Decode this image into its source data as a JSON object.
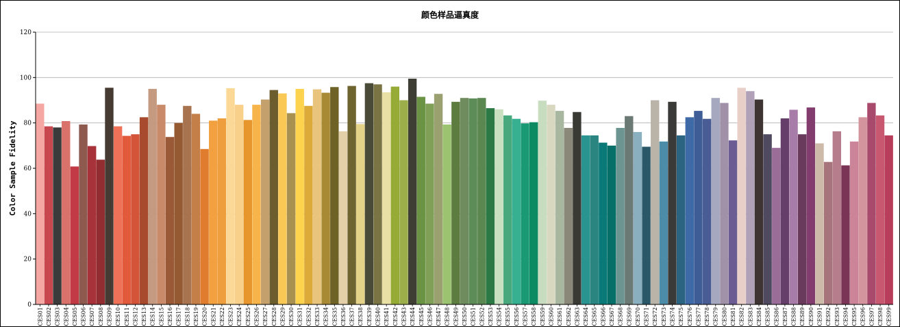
{
  "chart_data": {
    "type": "bar",
    "title": "颜色样品逼真度",
    "xlabel": "",
    "ylabel": "Color Sample Fidelity",
    "ylim": [
      0,
      120
    ],
    "yticks": [
      "0",
      "20",
      "40",
      "60",
      "80",
      "100",
      "120"
    ],
    "grid": "horizontal",
    "legend": "none",
    "categories": [
      "CES01",
      "CES02",
      "CES03",
      "CES04",
      "CES05",
      "CES06",
      "CES07",
      "CES08",
      "CES09",
      "CES10",
      "CES11",
      "CES12",
      "CES13",
      "CES14",
      "CES15",
      "CES16",
      "CES17",
      "CES18",
      "CES19",
      "CES20",
      "CES21",
      "CES22",
      "CES23",
      "CES24",
      "CES25",
      "CES26",
      "CES27",
      "CES28",
      "CES29",
      "CES30",
      "CES31",
      "CES32",
      "CES33",
      "CES34",
      "CES35",
      "CES36",
      "CES37",
      "CES38",
      "CES39",
      "CES40",
      "CES41",
      "CES42",
      "CES43",
      "CES44",
      "CES45",
      "CES46",
      "CES47",
      "CES48",
      "CES49",
      "CES50",
      "CES51",
      "CES52",
      "CES53",
      "CES54",
      "CES55",
      "CES56",
      "CES57",
      "CES58",
      "CES59",
      "CES60",
      "CES61",
      "CES62",
      "CES63",
      "CES64",
      "CES65",
      "CES66",
      "CES67",
      "CES68",
      "CES69",
      "CES70",
      "CES71",
      "CES72",
      "CES73",
      "CES74",
      "CES75",
      "CES76",
      "CES77",
      "CES78",
      "CES79",
      "CES80",
      "CES81",
      "CES82",
      "CES83",
      "CES84",
      "CES85",
      "CES86",
      "CES87",
      "CES88",
      "CES89",
      "CES90",
      "CES91",
      "CES92",
      "CES93",
      "CES94",
      "CES95",
      "CES96",
      "CES97",
      "CES98",
      "CES99"
    ],
    "values": [
      88.5,
      78.5,
      78,
      80.8,
      60.8,
      79.3,
      69.8,
      63.8,
      95.5,
      78.5,
      74.3,
      75,
      82.5,
      95,
      88,
      73.8,
      80,
      87.5,
      84,
      68.5,
      81,
      82,
      95.3,
      88,
      81.3,
      88,
      90.3,
      94.5,
      93,
      84.3,
      95,
      87.5,
      94.8,
      93.3,
      95.8,
      76.3,
      96.3,
      79.5,
      97.5,
      97,
      93.5,
      96,
      90,
      99.5,
      91.5,
      88.5,
      92.8,
      79.3,
      89.3,
      91,
      90.8,
      91,
      86.5,
      86,
      83.3,
      81.8,
      79.8,
      80.3,
      89.8,
      88,
      85.3,
      77.8,
      84.8,
      74.5,
      74.5,
      71.3,
      70,
      77.8,
      83,
      76,
      69.5,
      90,
      71.8,
      89.3,
      74.5,
      82.5,
      85.3,
      81.8,
      91,
      88.8,
      72.3,
      95.5,
      94,
      90.3,
      75,
      69,
      82,
      85.8,
      75,
      86.8,
      71,
      62.8,
      76.3,
      61.3,
      71.8,
      82.5,
      88.8,
      83.3,
      74.5
    ],
    "colors": [
      "#f4a7a3",
      "#c9484f",
      "#3b3b3b",
      "#d9726a",
      "#c23a46",
      "#8e5a50",
      "#a8323a",
      "#922d32",
      "#463b33",
      "#ef7158",
      "#e25a3c",
      "#d4543a",
      "#a84a2e",
      "#c49a80",
      "#c88a68",
      "#9a5a38",
      "#955a32",
      "#a87450",
      "#c47e48",
      "#e07c2e",
      "#f2a040",
      "#ef9e3e",
      "#fcd896",
      "#f8d08a",
      "#e6962c",
      "#f6b44a",
      "#c4a06c",
      "#6b5d2e",
      "#fac854",
      "#a89050",
      "#fdd24c",
      "#dcaa38",
      "#e8c47c",
      "#a88a34",
      "#6e6226",
      "#e4d0a8",
      "#6e6430",
      "#e4d288",
      "#4a4a38",
      "#7a7444",
      "#e8e0a4",
      "#96aa36",
      "#9cae4a",
      "#3e3e34",
      "#6a9444",
      "#80a058",
      "#9aa070",
      "#9cc470",
      "#5c7c40",
      "#6e8c5e",
      "#5e8c58",
      "#5a8850",
      "#2b7a46",
      "#c8e0c0",
      "#46a87c",
      "#36b090",
      "#1a9a74",
      "#0c8a62",
      "#c8dcc0",
      "#d8d8c0",
      "#a8b8a0",
      "#8a8878",
      "#3a3a34",
      "#2a9490",
      "#2a8480",
      "#0a7a78",
      "#067068",
      "#6c9490",
      "#6c7a76",
      "#8ab0c0",
      "#2a5868",
      "#bab4a8",
      "#4c8ca8",
      "#3a3a38",
      "#2a6480",
      "#3e6aa8",
      "#3e5c96",
      "#4a5c94",
      "#a6a8c0",
      "#a090a8",
      "#6c5c94",
      "#e8d0c8",
      "#b0a0b8",
      "#3e3434",
      "#504a60",
      "#9a6c98",
      "#663e6a",
      "#a87ca8",
      "#6a3a5c",
      "#823c6e",
      "#cebaa8",
      "#a6747a",
      "#b67e8c",
      "#7a3456",
      "#cc8498",
      "#d4949e",
      "#a84a6c",
      "#c85870",
      "#b83e5c"
    ]
  }
}
